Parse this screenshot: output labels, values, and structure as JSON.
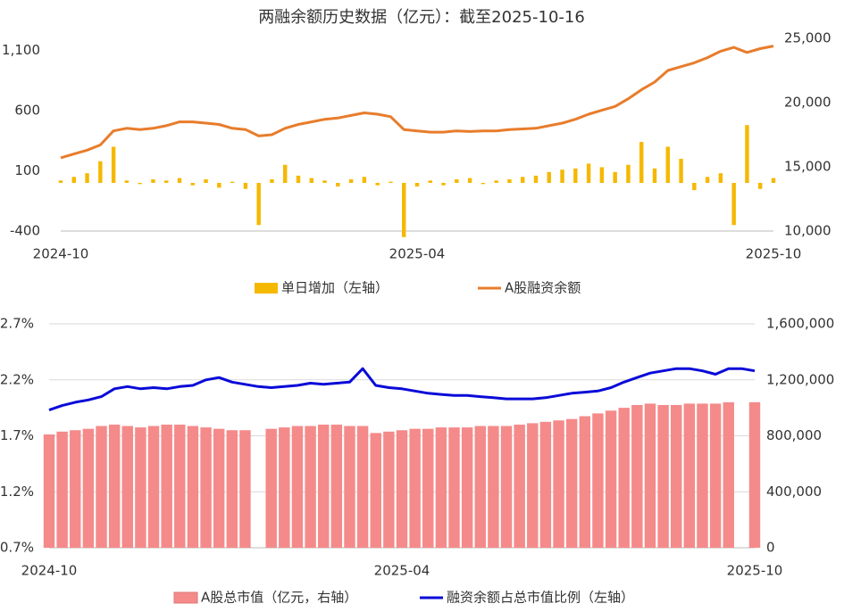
{
  "chart_data": [
    {
      "type": "combo",
      "title": "两融余额历史数据（亿元）：截至2025-10-16",
      "categories": [
        "2024-10",
        null,
        null,
        null,
        null,
        null,
        null,
        null,
        null,
        null,
        null,
        null,
        null,
        null,
        null,
        null,
        null,
        null,
        null,
        null,
        null,
        null,
        null,
        null,
        null,
        null,
        null,
        "2025-04",
        null,
        null,
        null,
        null,
        null,
        null,
        null,
        null,
        null,
        null,
        null,
        null,
        null,
        null,
        null,
        null,
        null,
        null,
        null,
        null,
        null,
        null,
        null,
        null,
        null,
        null,
        "2025-10"
      ],
      "series": [
        {
          "name": "单日增加（左轴）",
          "type": "bar",
          "color": "#f5b800",
          "values": [
            20,
            50,
            80,
            180,
            300,
            20,
            -10,
            30,
            20,
            40,
            -20,
            30,
            -40,
            10,
            -50,
            -350,
            30,
            150,
            60,
            40,
            20,
            -30,
            30,
            50,
            -20,
            10,
            -450,
            -30,
            20,
            -20,
            30,
            40,
            -10,
            20,
            30,
            50,
            60,
            90,
            110,
            120,
            160,
            130,
            90,
            150,
            340,
            120,
            300,
            200,
            -60,
            50,
            80,
            -350,
            480,
            -50,
            40
          ]
        },
        {
          "name": "A股融资余额",
          "type": "line",
          "axis": "y2",
          "color": "#e87c2b",
          "values": [
            15700,
            16000,
            16300,
            16700,
            17800,
            18000,
            17900,
            18000,
            18200,
            18500,
            18500,
            18400,
            18300,
            18000,
            17900,
            17400,
            17500,
            18000,
            18300,
            18500,
            18700,
            18800,
            19000,
            19200,
            19100,
            18900,
            17900,
            17800,
            17700,
            17700,
            17800,
            17750,
            17800,
            17800,
            17900,
            17950,
            18000,
            18200,
            18400,
            18700,
            19100,
            19400,
            19700,
            20300,
            21000,
            21600,
            22500,
            22800,
            23100,
            23500,
            24000,
            24300,
            23900,
            24200,
            24400
          ]
        }
      ],
      "ylim": [
        -400,
        1200
      ],
      "yticks": [
        -400,
        100,
        600,
        {
          "value": 1100,
          "label": "1,100"
        }
      ],
      "y2lim": [
        10000,
        25000
      ],
      "y2ticks": [
        {
          "value": 10000,
          "label": "10,000"
        },
        {
          "value": 15000,
          "label": "15,000"
        },
        {
          "value": 20000,
          "label": "20,000"
        },
        {
          "value": 25000,
          "label": "25,000"
        }
      ],
      "grid": false
    },
    {
      "type": "combo",
      "categories": [
        "2024-10",
        null,
        null,
        null,
        null,
        null,
        null,
        null,
        null,
        null,
        null,
        null,
        null,
        null,
        null,
        null,
        null,
        null,
        null,
        null,
        null,
        null,
        null,
        null,
        null,
        null,
        null,
        "2025-04",
        null,
        null,
        null,
        null,
        null,
        null,
        null,
        null,
        null,
        null,
        null,
        null,
        null,
        null,
        null,
        null,
        null,
        null,
        null,
        null,
        null,
        null,
        null,
        null,
        null,
        null,
        "2025-10"
      ],
      "series": [
        {
          "name": "A股总市值（亿元，右轴）",
          "type": "bar",
          "axis": "y2",
          "color": "#f58a8a",
          "values": [
            810000,
            830000,
            840000,
            850000,
            870000,
            880000,
            870000,
            860000,
            870000,
            880000,
            880000,
            870000,
            860000,
            850000,
            840000,
            840000,
            null,
            850000,
            860000,
            870000,
            870000,
            880000,
            880000,
            870000,
            870000,
            820000,
            830000,
            840000,
            850000,
            850000,
            860000,
            860000,
            860000,
            870000,
            870000,
            870000,
            880000,
            890000,
            900000,
            910000,
            920000,
            940000,
            960000,
            980000,
            1000000,
            1020000,
            1030000,
            1020000,
            1020000,
            1030000,
            1030000,
            1030000,
            1040000,
            null,
            1040000
          ]
        },
        {
          "name": "融资余额占总市值比例（左轴）",
          "type": "line",
          "color": "#0a0ad8",
          "values": [
            1.93,
            1.97,
            2.0,
            2.02,
            2.05,
            2.12,
            2.14,
            2.12,
            2.13,
            2.12,
            2.14,
            2.15,
            2.2,
            2.22,
            2.18,
            2.16,
            2.14,
            2.13,
            2.14,
            2.15,
            2.17,
            2.16,
            2.17,
            2.18,
            2.3,
            2.15,
            2.13,
            2.12,
            2.1,
            2.08,
            2.07,
            2.06,
            2.06,
            2.05,
            2.04,
            2.03,
            2.03,
            2.03,
            2.04,
            2.06,
            2.08,
            2.09,
            2.1,
            2.13,
            2.18,
            2.22,
            2.26,
            2.28,
            2.3,
            2.3,
            2.28,
            2.25,
            2.3,
            2.3,
            2.28
          ]
        }
      ],
      "ylim": [
        0.7,
        2.7
      ],
      "yticks": [
        {
          "value": 0.7,
          "label": "0.7%"
        },
        {
          "value": 1.2,
          "label": "1.2%"
        },
        {
          "value": 1.7,
          "label": "1.7%"
        },
        {
          "value": 2.2,
          "label": "2.2%"
        },
        {
          "value": 2.7,
          "label": "2.7%"
        }
      ],
      "y2lim": [
        0,
        1600000
      ],
      "y2ticks": [
        0,
        {
          "value": 400000,
          "label": "400,000"
        },
        {
          "value": 800000,
          "label": "800,000"
        },
        {
          "value": 1200000,
          "label": "1,200,000"
        },
        {
          "value": 1600000,
          "label": "1,600,000"
        }
      ],
      "grid": true
    }
  ]
}
